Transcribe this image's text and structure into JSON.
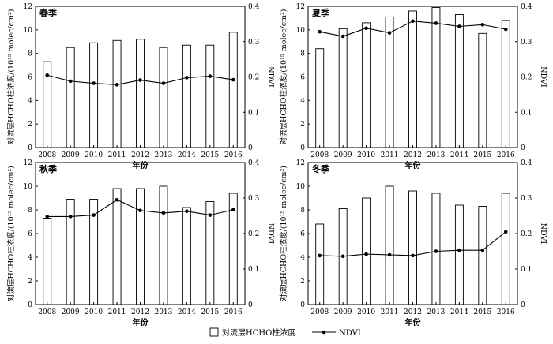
{
  "legend": {
    "bar_label": "对流层HCHO柱浓度",
    "line_label": "NDVI"
  },
  "axes_text": {
    "left_ylabel": "对流层HCHO柱浓度/(10¹⁵ molec/cm²)",
    "right_ylabel": "NDVI",
    "xlabel": "年份"
  },
  "chart_data": [
    {
      "type": "bar",
      "title": "春季",
      "categories": [
        "2008",
        "2009",
        "2010",
        "2011",
        "2012",
        "2013",
        "2014",
        "2015",
        "2016"
      ],
      "left_ylim": [
        0,
        12
      ],
      "left_ticks": [
        "0",
        "2",
        "4",
        "6",
        "8",
        "10",
        "12"
      ],
      "right_ylim": [
        0,
        0.4
      ],
      "right_ticks": [
        "0",
        "0.1",
        "0.2",
        "0.3",
        "0.4"
      ],
      "series": [
        {
          "name": "对流层HCHO柱浓度",
          "type": "bar",
          "axis": "left",
          "values": [
            7.3,
            8.5,
            8.9,
            9.1,
            9.2,
            8.5,
            8.7,
            8.7,
            9.8
          ]
        },
        {
          "name": "NDVI",
          "type": "line",
          "axis": "right",
          "values": [
            0.205,
            0.188,
            0.182,
            0.178,
            0.191,
            0.182,
            0.198,
            0.202,
            0.192
          ]
        }
      ]
    },
    {
      "type": "bar",
      "title": "夏季",
      "categories": [
        "2008",
        "2009",
        "2010",
        "2011",
        "2012",
        "2013",
        "2014",
        "2015",
        "2016"
      ],
      "left_ylim": [
        0,
        12
      ],
      "left_ticks": [
        "0",
        "2",
        "4",
        "6",
        "8",
        "10",
        "12"
      ],
      "right_ylim": [
        0,
        0.4
      ],
      "right_ticks": [
        "0",
        "0.1",
        "0.2",
        "0.3",
        "0.4"
      ],
      "series": [
        {
          "name": "对流层HCHO柱浓度",
          "type": "bar",
          "axis": "left",
          "values": [
            8.4,
            10.1,
            10.6,
            11.1,
            11.6,
            11.9,
            11.3,
            9.7,
            10.8
          ]
        },
        {
          "name": "NDVI",
          "type": "line",
          "axis": "right",
          "values": [
            0.328,
            0.315,
            0.338,
            0.325,
            0.358,
            0.352,
            0.343,
            0.348,
            0.335
          ]
        }
      ]
    },
    {
      "type": "bar",
      "title": "秋季",
      "categories": [
        "2008",
        "2009",
        "2010",
        "2011",
        "2012",
        "2013",
        "2014",
        "2015",
        "2016"
      ],
      "left_ylim": [
        0,
        12
      ],
      "left_ticks": [
        "0",
        "2",
        "4",
        "6",
        "8",
        "10",
        "12"
      ],
      "right_ylim": [
        0,
        0.4
      ],
      "right_ticks": [
        "0",
        "0.1",
        "0.2",
        "0.3",
        "0.4"
      ],
      "series": [
        {
          "name": "对流层HCHO柱浓度",
          "type": "bar",
          "axis": "left",
          "values": [
            7.3,
            8.9,
            8.9,
            9.8,
            9.8,
            10.0,
            8.2,
            8.7,
            9.4
          ]
        },
        {
          "name": "NDVI",
          "type": "line",
          "axis": "right",
          "values": [
            0.248,
            0.248,
            0.252,
            0.295,
            0.265,
            0.258,
            0.263,
            0.252,
            0.267
          ]
        }
      ]
    },
    {
      "type": "bar",
      "title": "冬季",
      "categories": [
        "2008",
        "2009",
        "2010",
        "2011",
        "2012",
        "2013",
        "2014",
        "2015",
        "2016"
      ],
      "left_ylim": [
        0,
        12
      ],
      "left_ticks": [
        "0",
        "2",
        "4",
        "6",
        "8",
        "10",
        "12"
      ],
      "right_ylim": [
        0,
        0.4
      ],
      "right_ticks": [
        "0",
        "0.1",
        "0.2",
        "0.3",
        "0.4"
      ],
      "series": [
        {
          "name": "对流层HCHO柱浓度",
          "type": "bar",
          "axis": "left",
          "values": [
            6.8,
            8.1,
            9.0,
            10.0,
            9.6,
            9.4,
            8.4,
            8.3,
            9.4
          ]
        },
        {
          "name": "NDVI",
          "type": "line",
          "axis": "right",
          "values": [
            0.138,
            0.136,
            0.142,
            0.14,
            0.138,
            0.15,
            0.153,
            0.153,
            0.205
          ]
        }
      ]
    }
  ]
}
